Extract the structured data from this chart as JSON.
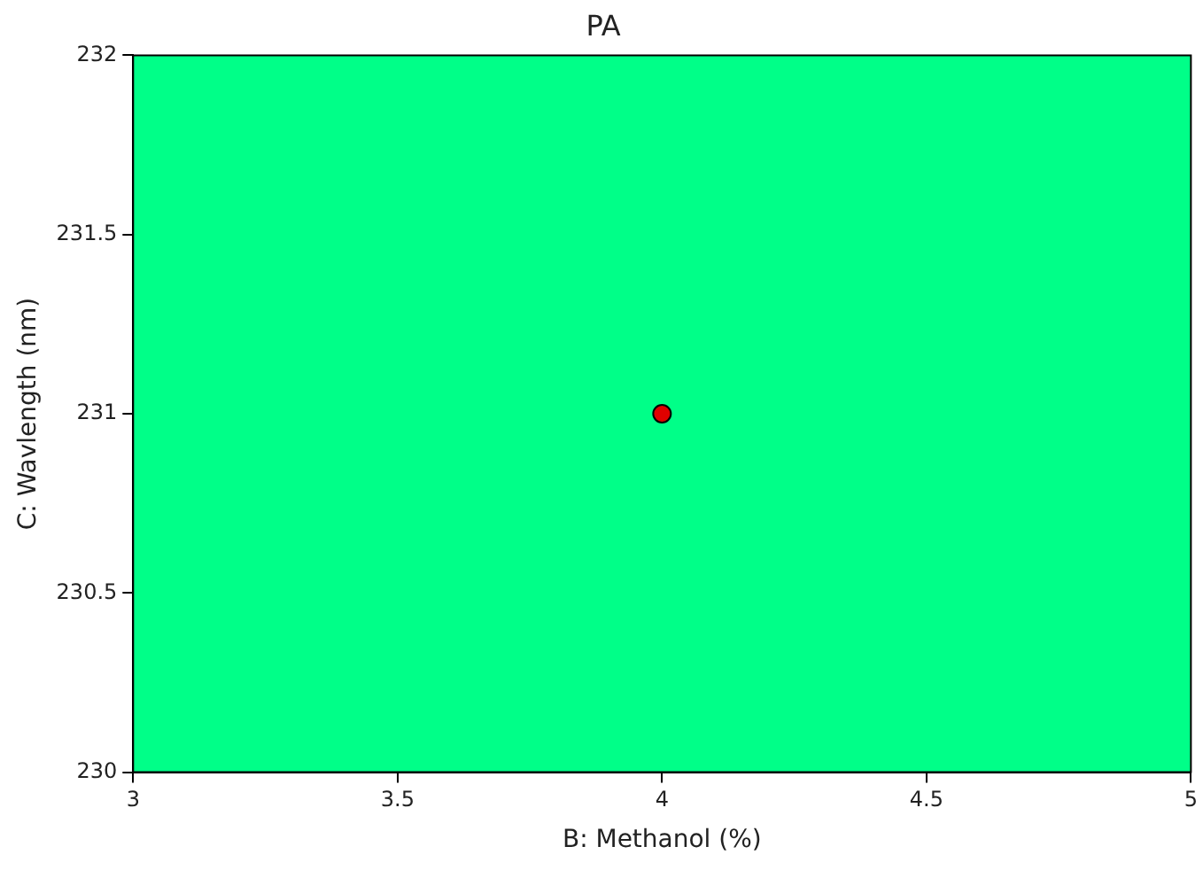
{
  "chart_data": {
    "type": "scatter",
    "title": "PA",
    "xlabel": "B: Methanol (%)",
    "ylabel": "C: Wavlength (nm)",
    "x": [
      4
    ],
    "values": [
      231
    ],
    "color": "#e00000",
    "marker": "circle",
    "xlim": [
      3,
      5
    ],
    "xticks": [
      3,
      3.5,
      4,
      4.5,
      5
    ],
    "ylim": [
      230,
      232
    ],
    "yticks": [
      230,
      230.5,
      231,
      231.5,
      232
    ],
    "bands": [
      {
        "axis": "x",
        "from": 3,
        "to": 5,
        "color": "#00ff88"
      }
    ],
    "grid": false,
    "legend": false
  }
}
